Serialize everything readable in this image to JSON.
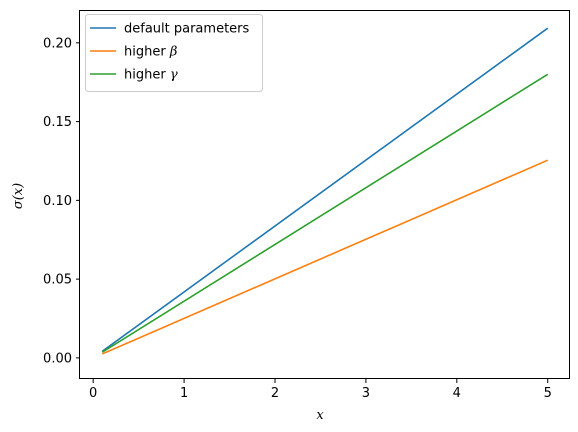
{
  "chart_data": {
    "type": "line",
    "title": "",
    "xlabel": "x",
    "ylabel": "σ(x)",
    "xlim": [
      -0.145,
      5.245
    ],
    "ylim": [
      -0.0134,
      0.2202
    ],
    "xticks": [
      0,
      1,
      2,
      3,
      4,
      5
    ],
    "xtick_labels": [
      "0",
      "1",
      "2",
      "3",
      "4",
      "5"
    ],
    "yticks": [
      0.0,
      0.05,
      0.1,
      0.15,
      0.2
    ],
    "ytick_labels": [
      "0.00",
      "0.05",
      "0.10",
      "0.15",
      "0.20"
    ],
    "grid": false,
    "legend_position": "upper-left",
    "series": [
      {
        "name": "default parameters",
        "label_text": "default parameters",
        "label_symbol": "",
        "color": "#1f77b4",
        "x": [
          0.1,
          5.0
        ],
        "y": [
          0.0042,
          0.2093
        ]
      },
      {
        "name": "higher β",
        "label_text": "higher ",
        "label_symbol": "β",
        "color": "#ff7f0e",
        "x": [
          0.1,
          5.0
        ],
        "y": [
          0.0025,
          0.1255
        ]
      },
      {
        "name": "higher γ",
        "label_text": "higher ",
        "label_symbol": "γ",
        "color": "#2ca02c",
        "x": [
          0.1,
          5.0
        ],
        "y": [
          0.0036,
          0.18
        ]
      }
    ]
  }
}
